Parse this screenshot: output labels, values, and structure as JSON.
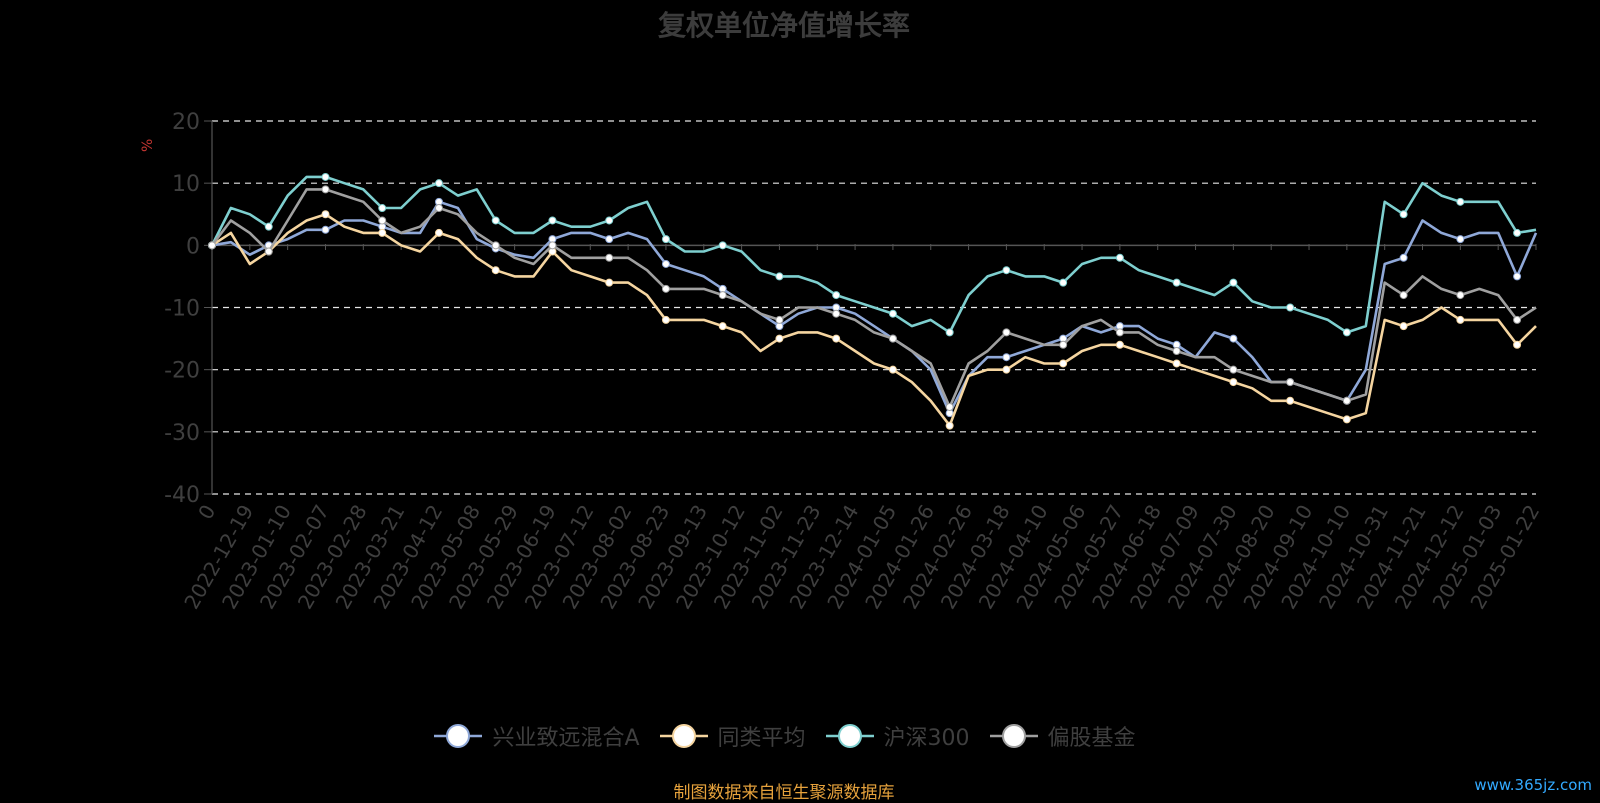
{
  "chart_data": {
    "type": "line",
    "title": "复权单位净值增长率",
    "ylabel": "%",
    "ylim": [
      -40,
      20
    ],
    "y_ticks": [
      20,
      10,
      0,
      -10,
      -20,
      -30,
      -40
    ],
    "grid": true,
    "legend_position": "bottom",
    "x_tick_labels": [
      "0",
      "2022-12-19",
      "2023-01-10",
      "2023-02-07",
      "2023-02-28",
      "2023-03-21",
      "2023-04-12",
      "2023-05-08",
      "2023-05-29",
      "2023-06-19",
      "2023-07-12",
      "2023-08-02",
      "2023-08-23",
      "2023-09-13",
      "2023-10-12",
      "2023-11-02",
      "2023-11-23",
      "2023-12-14",
      "2024-01-05",
      "2024-01-26",
      "2024-02-26",
      "2024-03-18",
      "2024-04-10",
      "2024-05-06",
      "2024-05-27",
      "2024-06-18",
      "2024-07-09",
      "2024-07-30",
      "2024-08-20",
      "2024-09-10",
      "2024-10-10",
      "2024-10-31",
      "2024-11-21",
      "2024-12-12",
      "2025-01-03",
      "2025-01-22"
    ],
    "x": [
      "2022-11-25",
      "2022-12-05",
      "2022-12-19",
      "2022-12-28",
      "2023-01-10",
      "2023-01-20",
      "2023-02-07",
      "2023-02-17",
      "2023-02-28",
      "2023-03-10",
      "2023-03-21",
      "2023-03-31",
      "2023-04-12",
      "2023-04-24",
      "2023-05-08",
      "2023-05-18",
      "2023-05-29",
      "2023-06-08",
      "2023-06-19",
      "2023-07-03",
      "2023-07-12",
      "2023-07-21",
      "2023-08-02",
      "2023-08-11",
      "2023-08-23",
      "2023-09-01",
      "2023-09-13",
      "2023-09-25",
      "2023-10-12",
      "2023-10-20",
      "2023-11-02",
      "2023-11-13",
      "2023-11-23",
      "2023-12-04",
      "2023-12-14",
      "2023-12-25",
      "2024-01-05",
      "2024-01-16",
      "2024-01-26",
      "2024-02-05",
      "2024-02-26",
      "2024-03-07",
      "2024-03-18",
      "2024-03-28",
      "2024-04-10",
      "2024-04-22",
      "2024-05-06",
      "2024-05-16",
      "2024-05-27",
      "2024-06-05",
      "2024-06-18",
      "2024-06-28",
      "2024-07-09",
      "2024-07-19",
      "2024-07-30",
      "2024-08-08",
      "2024-08-20",
      "2024-08-29",
      "2024-09-10",
      "2024-09-23",
      "2024-10-10",
      "2024-10-21",
      "2024-10-31",
      "2024-11-11",
      "2024-11-21",
      "2024-12-02",
      "2024-12-12",
      "2024-12-23",
      "2025-01-03",
      "2025-01-13",
      "2025-01-22"
    ],
    "series": [
      {
        "name": "兴业致远混合A",
        "color": "#8fa8d8",
        "values": [
          0,
          0.5,
          -1.5,
          0,
          1,
          2.5,
          2.5,
          4,
          4,
          3,
          2,
          2,
          7,
          6,
          1,
          -0.5,
          -1.5,
          -2,
          1,
          2,
          2,
          1,
          2,
          1,
          -3,
          -4,
          -5,
          -7,
          -9,
          -11,
          -13,
          -11,
          -10,
          -10,
          -11,
          -13,
          -15,
          -17,
          -20,
          -27,
          -21,
          -18,
          -18,
          -17,
          -16,
          -15,
          -13,
          -14,
          -13,
          -13,
          -15,
          -16,
          -18,
          -14,
          -15,
          -18,
          -22,
          -22,
          -23,
          -24,
          -25,
          -20,
          -3,
          -2,
          4,
          2,
          1,
          2,
          2,
          -5,
          2
        ]
      },
      {
        "name": "同类平均",
        "color": "#f5d5a0",
        "values": [
          0,
          2,
          -3,
          -1,
          2,
          4,
          5,
          3,
          2,
          2,
          0,
          -1,
          2,
          1,
          -2,
          -4,
          -5,
          -5,
          -1,
          -4,
          -5,
          -6,
          -6,
          -8,
          -12,
          -12,
          -12,
          -13,
          -14,
          -17,
          -15,
          -14,
          -14,
          -15,
          -17,
          -19,
          -20,
          -22,
          -25,
          -29,
          -21,
          -20,
          -20,
          -18,
          -19,
          -19,
          -17,
          -16,
          -16,
          -17,
          -18,
          -19,
          -20,
          -21,
          -22,
          -23,
          -25,
          -25,
          -26,
          -27,
          -28,
          -27,
          -12,
          -13,
          -12,
          -10,
          -12,
          -12,
          -12,
          -16,
          -13
        ]
      },
      {
        "name": "沪深300",
        "color": "#7ecfcf",
        "values": [
          0,
          6,
          5,
          3,
          8,
          11,
          11,
          10,
          9,
          6,
          6,
          9,
          10,
          8,
          9,
          4,
          2,
          2,
          4,
          3,
          3,
          4,
          6,
          7,
          1,
          -1,
          -1,
          0,
          -1,
          -4,
          -5,
          -5,
          -6,
          -8,
          -9,
          -10,
          -11,
          -13,
          -12,
          -14,
          -8,
          -5,
          -4,
          -5,
          -5,
          -6,
          -3,
          -2,
          -2,
          -4,
          -5,
          -6,
          -7,
          -8,
          -6,
          -9,
          -10,
          -10,
          -11,
          -12,
          -14,
          -13,
          7,
          5,
          10,
          8,
          7,
          7,
          7,
          2,
          2.5
        ]
      },
      {
        "name": "偏股基金",
        "color": "#a0a0a0",
        "values": [
          0,
          4,
          2,
          -1,
          4,
          9,
          9,
          8,
          7,
          4,
          2,
          3,
          6,
          5,
          2,
          0,
          -2,
          -3,
          0,
          -2,
          -2,
          -2,
          -2,
          -4,
          -7,
          -7,
          -7,
          -8,
          -9,
          -11,
          -12,
          -10,
          -10,
          -11,
          -12,
          -14,
          -15,
          -17,
          -19,
          -26,
          -19,
          -17,
          -14,
          -15,
          -16,
          -16,
          -13,
          -12,
          -14,
          -14,
          -16,
          -17,
          -18,
          -18,
          -20,
          -21,
          -22,
          -22,
          -23,
          -24,
          -25,
          -24,
          -6,
          -8,
          -5,
          -7,
          -8,
          -7,
          -8,
          -12,
          -10
        ]
      }
    ]
  },
  "source_note": "制图数据来自恒生聚源数据库",
  "watermark": "www.365jz.com"
}
